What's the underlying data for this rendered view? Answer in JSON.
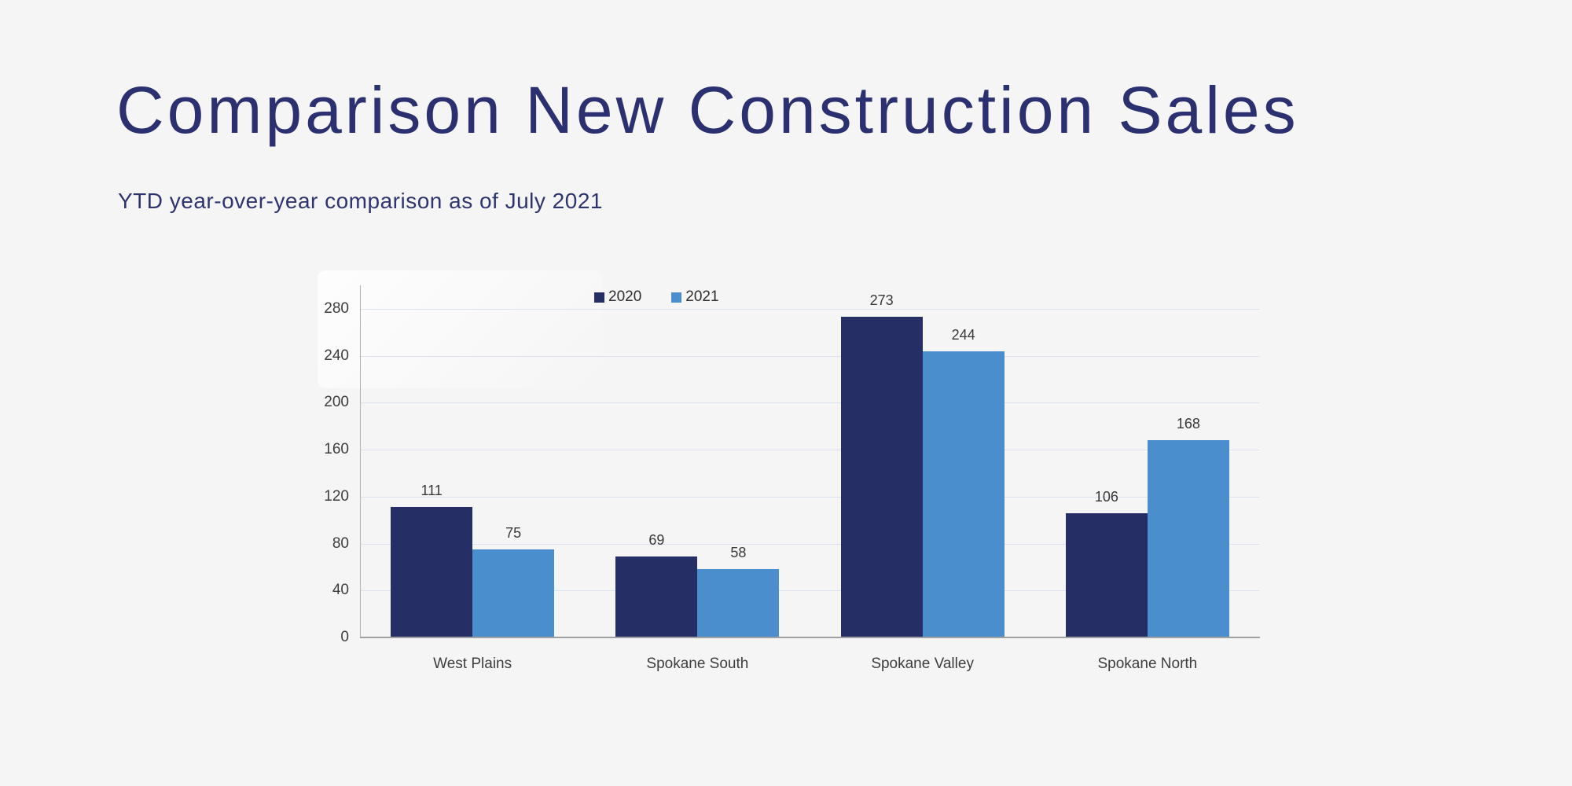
{
  "page": {
    "background_color": "#f5f5f6",
    "title_color": "#2b3170"
  },
  "chart_data": {
    "type": "bar",
    "title": "Comparison New Construction Sales",
    "subtitle": "YTD year-over-year comparison as of July 2021",
    "categories": [
      "West Plains",
      "Spokane South",
      "Spokane Valley",
      "Spokane North"
    ],
    "series": [
      {
        "name": "2020",
        "color": "#262e66",
        "values": [
          111,
          69,
          273,
          106
        ]
      },
      {
        "name": "2021",
        "color": "#4a8ecd",
        "values": [
          75,
          58,
          244,
          168
        ]
      }
    ],
    "xlabel": "",
    "ylabel": "",
    "y_ticks": [
      0,
      40,
      80,
      120,
      160,
      200,
      240,
      280
    ],
    "ylim": [
      0,
      300
    ],
    "grid": "horizontal",
    "gridline_color": "#dde3ee",
    "legend_position": "top",
    "value_labels": true
  }
}
